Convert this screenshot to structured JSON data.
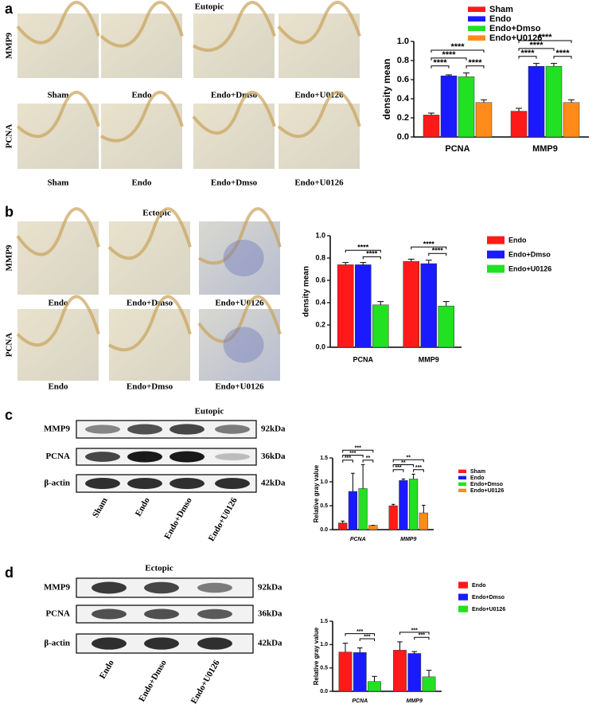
{
  "panels": [
    {
      "letter": "a",
      "title": "Eutopic",
      "rows": [
        "MMP9",
        "PCNA"
      ],
      "captions": [
        "Sham",
        "Endo",
        "Endo+Dmso",
        "Endo+U0126"
      ]
    },
    {
      "letter": "b",
      "title": "Ectopic",
      "rows": [
        "MMP9",
        "PCNA"
      ],
      "captions": [
        "Endo",
        "Endo+Dmso",
        "Endo+U0126"
      ]
    }
  ],
  "blots": [
    {
      "letter": "c",
      "title": "Eutopic",
      "proteins": [
        "MMP9",
        "PCNA",
        "β-actin"
      ],
      "sizes": [
        "92kDa",
        "36kDa",
        "42kDa"
      ],
      "lanes": [
        "Sham",
        "Endo",
        "Endo+Dmso",
        "Endo+U0126"
      ]
    },
    {
      "letter": "d",
      "title": "Ectopic",
      "proteins": [
        "MMP9",
        "PCNA",
        "β-actin"
      ],
      "sizes": [
        "92kDa",
        "36kDa",
        "42kDa"
      ],
      "lanes": [
        "Endo",
        "Endo+Dmso",
        "Endo+U0126"
      ]
    }
  ],
  "chart_data": [
    {
      "type": "bar",
      "y_label": "density mean",
      "categories": [
        "PCNA",
        "MMP9"
      ],
      "series": [
        {
          "name": "Sham",
          "color": "#ff1a1a",
          "values": [
            0.23,
            0.27
          ],
          "errors": [
            0.02,
            0.03
          ]
        },
        {
          "name": "Endo",
          "color": "#1a1aff",
          "values": [
            0.64,
            0.74
          ],
          "errors": [
            0.01,
            0.03
          ]
        },
        {
          "name": "Endo+Dmso",
          "color": "#22e022",
          "values": [
            0.63,
            0.74
          ],
          "errors": [
            0.04,
            0.03
          ]
        },
        {
          "name": "Endo+U0126",
          "color": "#ff8c1a",
          "values": [
            0.36,
            0.36
          ],
          "errors": [
            0.03,
            0.03
          ]
        }
      ],
      "ylim": [
        0,
        1.0
      ],
      "yticks": [
        {
          "value": 0,
          "label": "0.0"
        },
        0.2,
        0.4,
        0.6,
        0.8,
        {
          "value": 1.0,
          "label": "1.0"
        }
      ],
      "annotations": [
        "****",
        "****",
        "****",
        "****",
        "****",
        "****",
        "****",
        "****"
      ]
    },
    {
      "type": "bar",
      "y_label": "density mean",
      "categories": [
        "PCNA",
        "MMP9"
      ],
      "series": [
        {
          "name": "Endo",
          "color": "#ff1a1a",
          "values": [
            0.74,
            0.77
          ],
          "errors": [
            0.02,
            0.02
          ]
        },
        {
          "name": "Endo+Dmso",
          "color": "#1a1aff",
          "values": [
            0.74,
            0.75
          ],
          "errors": [
            0.02,
            0.03
          ]
        },
        {
          "name": "Endo+U0126",
          "color": "#22e022",
          "values": [
            0.38,
            0.37
          ],
          "errors": [
            0.03,
            0.04
          ]
        }
      ],
      "ylim": [
        0,
        1.0
      ],
      "yticks": [
        {
          "value": 0,
          "label": "0.0"
        },
        0.2,
        0.4,
        0.6,
        0.8,
        {
          "value": 1.0,
          "label": "1.0"
        }
      ],
      "annotations": [
        "****",
        "****",
        "****",
        "****"
      ]
    },
    {
      "type": "bar",
      "y_label": "Relative gray value",
      "categories": [
        "PCNA",
        "MMP9"
      ],
      "series": [
        {
          "name": "Sham",
          "color": "#ff1a1a",
          "values": [
            0.14,
            0.5
          ],
          "errors": [
            0.04,
            0.03
          ]
        },
        {
          "name": "Endo",
          "color": "#1a1aff",
          "values": [
            0.8,
            1.03
          ],
          "errors": [
            0.38,
            0.03
          ]
        },
        {
          "name": "Endo+Dmso",
          "color": "#22e022",
          "values": [
            0.86,
            1.06
          ],
          "errors": [
            0.5,
            0.1
          ]
        },
        {
          "name": "Endo+U0126",
          "color": "#ff8c1a",
          "values": [
            0.09,
            0.35
          ],
          "errors": [
            0.0,
            0.16
          ]
        }
      ],
      "ylim": [
        0,
        1.5
      ],
      "yticks": [
        {
          "value": 0,
          "label": "0.0"
        },
        0.5,
        {
          "value": 1.0,
          "label": "1.0"
        },
        1.5
      ],
      "annotations": [
        "***",
        "***",
        "***",
        "**",
        "***",
        "**",
        "**",
        "***"
      ]
    },
    {
      "type": "bar",
      "y_label": "Relative gray value",
      "categories": [
        "PCNA",
        "MMP9"
      ],
      "series": [
        {
          "name": "Endo",
          "color": "#ff1a1a",
          "values": [
            0.84,
            0.88
          ],
          "errors": [
            0.19,
            0.18
          ]
        },
        {
          "name": "Endo+Dmso",
          "color": "#1a1aff",
          "values": [
            0.83,
            0.81
          ],
          "errors": [
            0.1,
            0.04
          ]
        },
        {
          "name": "Endo+U0126",
          "color": "#22e022",
          "values": [
            0.21,
            0.31
          ],
          "errors": [
            0.11,
            0.14
          ]
        }
      ],
      "ylim": [
        0,
        1.5
      ],
      "yticks": [
        {
          "value": 0,
          "label": "0.0"
        },
        0.5,
        {
          "value": 1.0,
          "label": "1.0"
        },
        1.5
      ],
      "annotations": [
        "***",
        "***",
        "***",
        "***"
      ]
    }
  ]
}
